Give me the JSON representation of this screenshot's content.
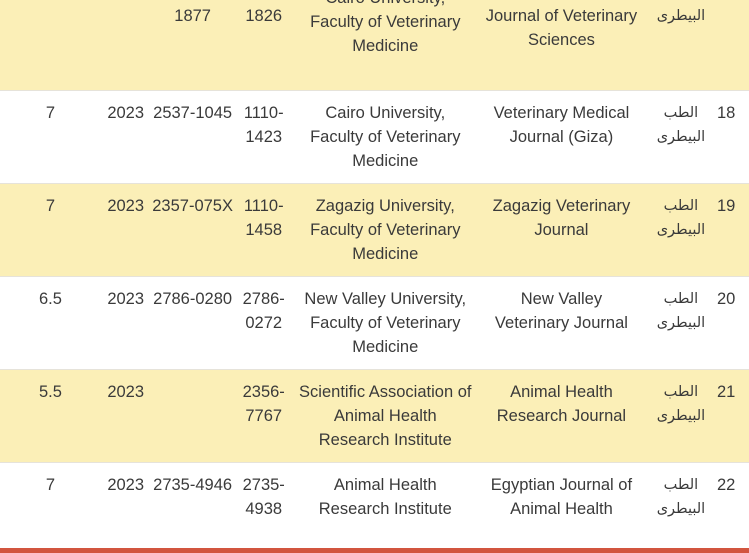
{
  "table": {
    "rows": [
      {
        "style": "odd",
        "height": 96,
        "score": "",
        "year": "",
        "eissn": "1877",
        "issn": "1826",
        "publisher": "Faculty of Veterinary Medicine",
        "publisher_top": "Cairo University,",
        "journal": "Journal of Veterinary Sciences",
        "field": "البيطرى",
        "num": ""
      },
      {
        "style": "even",
        "height": 92,
        "score": "7",
        "year": "2023",
        "eissn": "2537-1045",
        "issn": "1110-1423",
        "publisher": "Cairo University, Faculty of Veterinary Medicine",
        "journal": "Veterinary Medical Journal (Giza)",
        "field": "الطب البيطرى",
        "num": "18"
      },
      {
        "style": "odd",
        "height": 93,
        "score": "7",
        "year": "2023",
        "eissn": "2357-075X",
        "issn": "1110-1458",
        "publisher": "Zagazig University, Faculty of Veterinary Medicine",
        "journal": "Zagazig Veterinary Journal",
        "field": "الطب البيطرى",
        "num": "19"
      },
      {
        "style": "even",
        "height": 93,
        "score": "6.5",
        "year": "2023",
        "eissn": "2786-0280",
        "issn": "2786-0272",
        "publisher": "New Valley University, Faculty of Veterinary Medicine",
        "journal": "New Valley Veterinary Journal",
        "field": "الطب البيطرى",
        "num": "20"
      },
      {
        "style": "odd",
        "height": 93,
        "score": "5.5",
        "year": "2023",
        "eissn": "",
        "issn": "2356-7767",
        "publisher": "Scientific Association of Animal Health Research Institute",
        "journal": "Animal Health Research Journal",
        "field": "الطب البيطرى",
        "num": "21"
      },
      {
        "style": "even",
        "height": 86,
        "score": "7",
        "year": "2023",
        "eissn": "2735-4946",
        "issn": "2735-4938",
        "publisher": "Animal Health Research Institute",
        "journal": "Egyptian Journal of Animal Health",
        "field": "الطب البيطرى",
        "num": "22"
      }
    ]
  },
  "colors": {
    "row_highlight": "#fbefb7",
    "row_plain": "#ffffff",
    "text": "#3a3a3a",
    "footer_bar": "#d2553f"
  }
}
